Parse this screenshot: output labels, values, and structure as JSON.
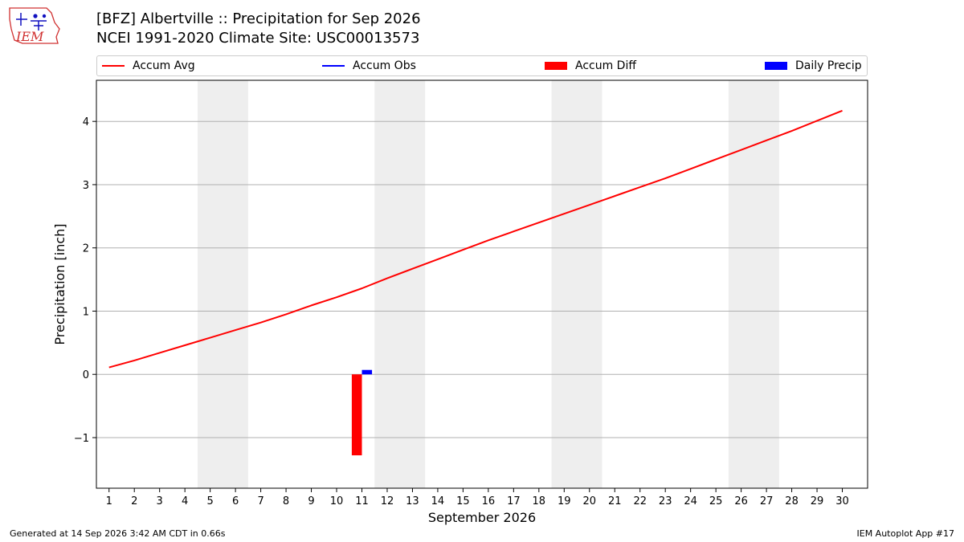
{
  "header": {
    "title": "[BFZ] Albertville :: Precipitation for Sep 2026",
    "subtitle": "NCEI 1991-2020 Climate Site: USC00013573",
    "logo_text": "IEM"
  },
  "footer": {
    "generated": "Generated at 14 Sep 2026 3:42 AM CDT in 0.66s",
    "app": "IEM Autoplot App #17"
  },
  "colors": {
    "accum_avg": "#ff0000",
    "accum_obs": "#0000ff",
    "accum_diff": "#ff0000",
    "daily_precip": "#0000ff",
    "weekend_band": "#eeeeee",
    "grid": "#b0b0b0"
  },
  "chart_data": {
    "type": "line",
    "xlabel": "September 2026",
    "ylabel": "Precipitation [inch]",
    "xlim": [
      0.5,
      31.0
    ],
    "ylim": [
      -1.8,
      4.65
    ],
    "x_ticks": [
      1,
      2,
      3,
      4,
      5,
      6,
      7,
      8,
      9,
      10,
      11,
      12,
      13,
      14,
      15,
      16,
      17,
      18,
      19,
      20,
      21,
      22,
      23,
      24,
      25,
      26,
      27,
      28,
      29,
      30
    ],
    "y_ticks": [
      -1,
      0,
      1,
      2,
      3,
      4
    ],
    "y_tick_labels": [
      "−1",
      "0",
      "1",
      "2",
      "3",
      "4"
    ],
    "grid": "horizontal",
    "legend": {
      "placement": "top",
      "entries": [
        "Accum Avg",
        "Accum Obs",
        "Accum Diff",
        "Daily Precip"
      ]
    },
    "weekend_days": [
      5,
      6,
      12,
      13,
      19,
      20,
      26,
      27
    ],
    "series": [
      {
        "name": "Accum Avg",
        "type": "line",
        "x": [
          1,
          2,
          3,
          4,
          5,
          6,
          7,
          8,
          9,
          10,
          11,
          12,
          13,
          14,
          15,
          16,
          17,
          18,
          19,
          20,
          21,
          22,
          23,
          24,
          25,
          26,
          27,
          28,
          29,
          30
        ],
        "values": [
          0.11,
          0.22,
          0.34,
          0.46,
          0.58,
          0.7,
          0.82,
          0.95,
          1.09,
          1.22,
          1.36,
          1.52,
          1.67,
          1.82,
          1.97,
          2.12,
          2.26,
          2.4,
          2.54,
          2.68,
          2.82,
          2.96,
          3.1,
          3.25,
          3.4,
          3.55,
          3.7,
          3.85,
          4.01,
          4.17
        ]
      },
      {
        "name": "Accum Obs",
        "type": "line",
        "x": [],
        "values": []
      },
      {
        "name": "Accum Diff",
        "type": "bar",
        "x": [
          10.8
        ],
        "values": [
          -1.28
        ]
      },
      {
        "name": "Daily Precip",
        "type": "bar",
        "x": [
          11.2
        ],
        "values": [
          0.07
        ]
      }
    ]
  }
}
